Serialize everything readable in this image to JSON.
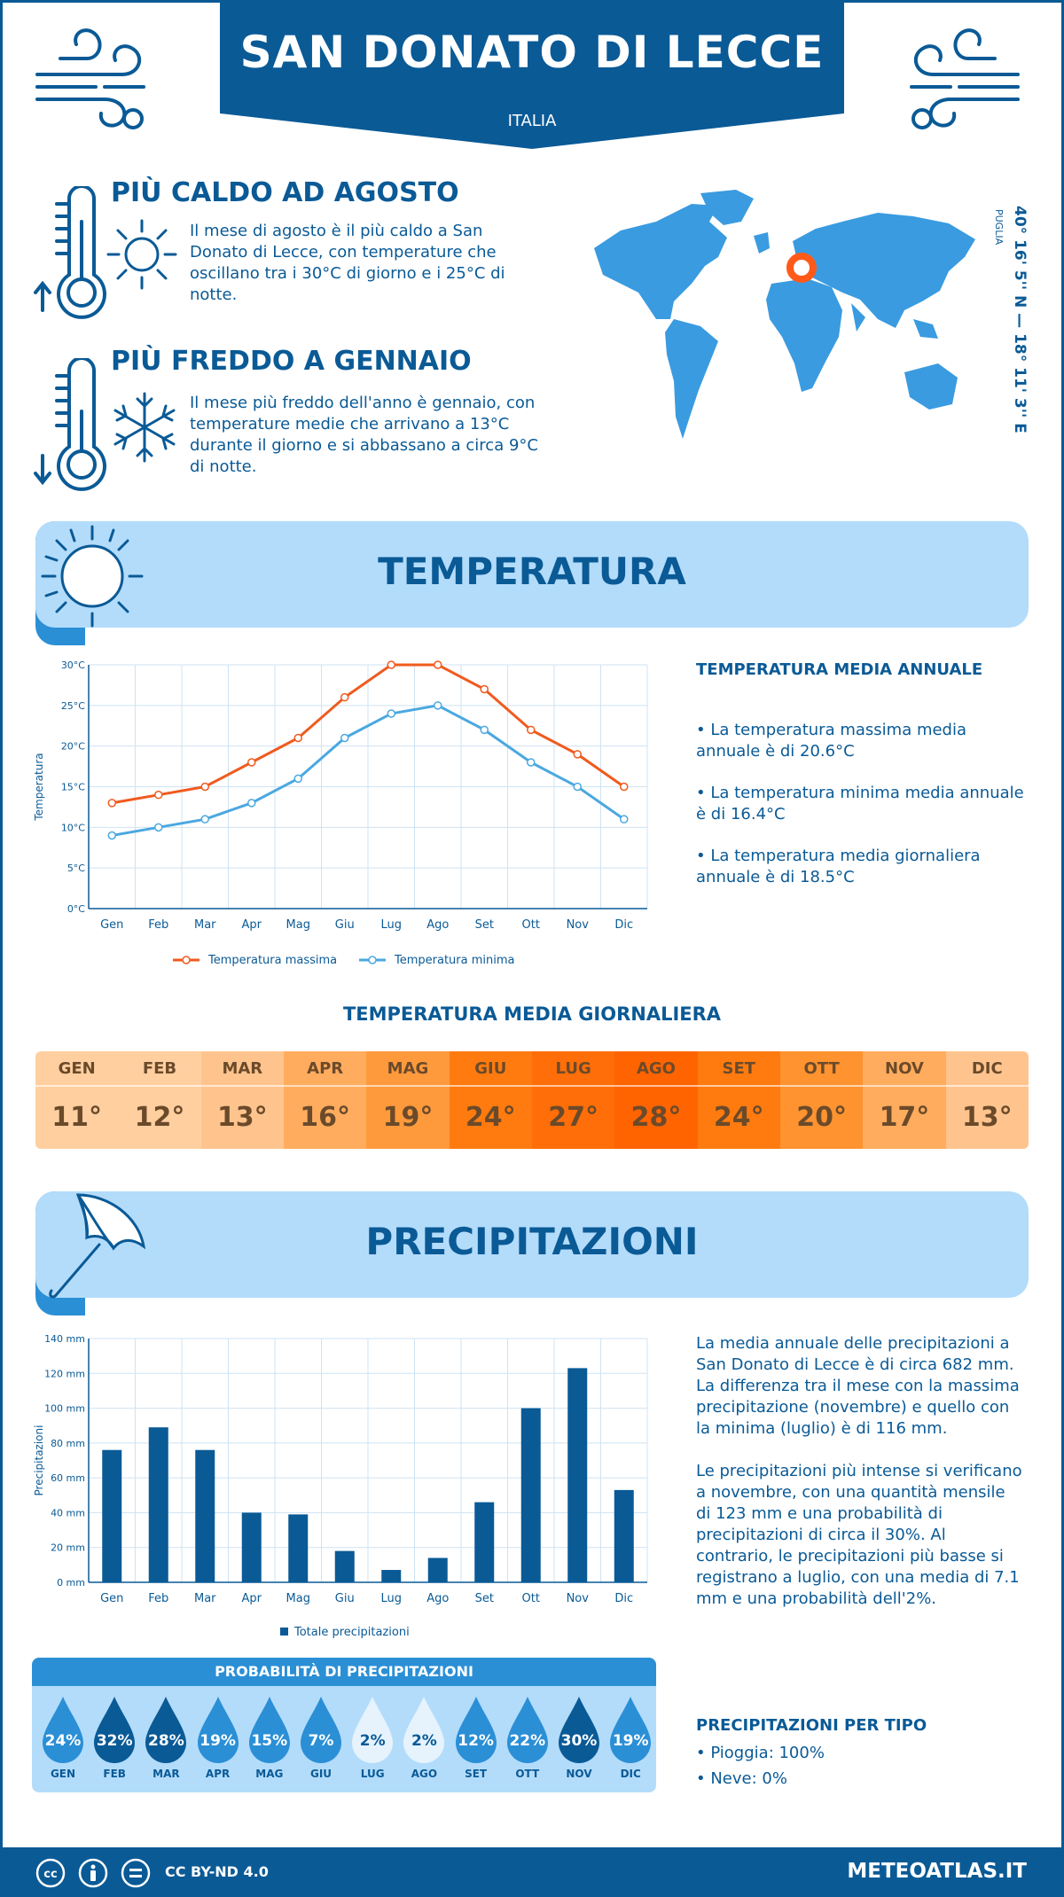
{
  "header": {
    "title": "SAN DONATO DI LECCE",
    "subtitle": "ITALIA"
  },
  "coords": {
    "value": "40° 16' 5'' N — 18° 11' 3'' E",
    "region": "PUGLIA"
  },
  "hot": {
    "title": "PIÙ CALDO AD AGOSTO",
    "text": "Il mese di agosto è il più caldo a San Donato di Lecce, con temperature che oscillano tra i 30°C di giorno e i 25°C di notte."
  },
  "cold": {
    "title": "PIÙ FREDDO A GENNAIO",
    "text": "Il mese più freddo dell'anno è gennaio, con temperature medie che arrivano a 13°C durante il giorno e si abbassano a circa 9°C di notte."
  },
  "temperature_section": {
    "title": "TEMPERATURA",
    "side_title": "TEMPERATURA MEDIA ANNUALE",
    "bullets": [
      "• La temperatura massima media annuale è di 20.6°C",
      "• La temperatura minima media annuale è di 16.4°C",
      "• La temperatura media giornaliera annuale è di 18.5°C"
    ]
  },
  "daily": {
    "title": "TEMPERATURA MEDIA GIORNALIERA",
    "months": [
      "GEN",
      "FEB",
      "MAR",
      "APR",
      "MAG",
      "GIU",
      "LUG",
      "AGO",
      "SET",
      "OTT",
      "NOV",
      "DIC"
    ],
    "values": [
      "11°",
      "12°",
      "13°",
      "16°",
      "19°",
      "24°",
      "27°",
      "28°",
      "24°",
      "20°",
      "17°",
      "13°"
    ],
    "colors": [
      "#ffcfa0",
      "#ffcfa0",
      "#ffc48e",
      "#ffac5e",
      "#ff9a3c",
      "#ff7b10",
      "#ff6e08",
      "#ff6400",
      "#ff7b10",
      "#ff9330",
      "#ffac5e",
      "#ffc48e"
    ]
  },
  "precip_section": {
    "title": "PRECIPITAZIONI",
    "para1": "La media annuale delle precipitazioni a San Donato di Lecce è di circa 682 mm. La differenza tra il mese con la massima precipitazione (novembre) e quello con la minima (luglio) è di 116 mm.",
    "para2": "Le precipitazioni più intense si verificano a novembre, con una quantità mensile di 123 mm e una probabilità di precipitazioni di circa il 30%. Al contrario, le precipitazioni più basse si registrano a luglio, con una media di 7.1 mm e una probabilità dell'2%.",
    "type_title": "PRECIPITAZIONI PER TIPO",
    "types": [
      "• Pioggia: 100%",
      "• Neve: 0%"
    ]
  },
  "probability": {
    "title": "PROBABILITÀ DI PRECIPITAZIONI",
    "months": [
      "GEN",
      "FEB",
      "MAR",
      "APR",
      "MAG",
      "GIU",
      "LUG",
      "AGO",
      "SET",
      "OTT",
      "NOV",
      "DIC"
    ],
    "values": [
      "24%",
      "32%",
      "28%",
      "19%",
      "15%",
      "7%",
      "2%",
      "2%",
      "12%",
      "22%",
      "30%",
      "19%"
    ],
    "colors": [
      "#2b8fd6",
      "#0a5a96",
      "#0a5a96",
      "#2b8fd6",
      "#2b8fd6",
      "#2b8fd6",
      "#e6f3fd",
      "#e6f3fd",
      "#2b8fd6",
      "#2b8fd6",
      "#0a5a96",
      "#2b8fd6"
    ]
  },
  "chart_data": [
    {
      "type": "line",
      "categories": [
        "Gen",
        "Feb",
        "Mar",
        "Apr",
        "Mag",
        "Giu",
        "Lug",
        "Ago",
        "Set",
        "Ott",
        "Nov",
        "Dic"
      ],
      "series": [
        {
          "name": "Temperatura massima",
          "values": [
            13,
            14,
            15,
            18,
            21,
            26,
            30,
            30,
            27,
            22,
            19,
            15
          ],
          "color": "#f05a1e"
        },
        {
          "name": "Temperatura minima",
          "values": [
            9,
            10,
            11,
            13,
            16,
            21,
            24,
            25,
            22,
            18,
            15,
            11
          ],
          "color": "#4aa8e0"
        }
      ],
      "ylabel": "Temperatura",
      "yticks": [
        "0°C",
        "5°C",
        "10°C",
        "15°C",
        "20°C",
        "25°C",
        "30°C"
      ],
      "ylim": [
        0,
        30
      ],
      "grid": true,
      "legend": "bottom"
    },
    {
      "type": "bar",
      "categories": [
        "Gen",
        "Feb",
        "Mar",
        "Apr",
        "Mag",
        "Giu",
        "Lug",
        "Ago",
        "Set",
        "Ott",
        "Nov",
        "Dic"
      ],
      "series": [
        {
          "name": "Totale precipitazioni",
          "values": [
            76,
            89,
            76,
            40,
            39,
            18,
            7.1,
            14,
            46,
            100,
            123,
            53
          ],
          "color": "#0a5a96"
        }
      ],
      "ylabel": "Precipitazioni",
      "yticks": [
        "0 mm",
        "20 mm",
        "40 mm",
        "60 mm",
        "80 mm",
        "100 mm",
        "120 mm",
        "140 mm"
      ],
      "ylim": [
        0,
        140
      ],
      "grid": true,
      "legend": "bottom"
    }
  ],
  "footer": {
    "license": "CC BY-ND 4.0",
    "site": "METEOATLAS.IT"
  }
}
